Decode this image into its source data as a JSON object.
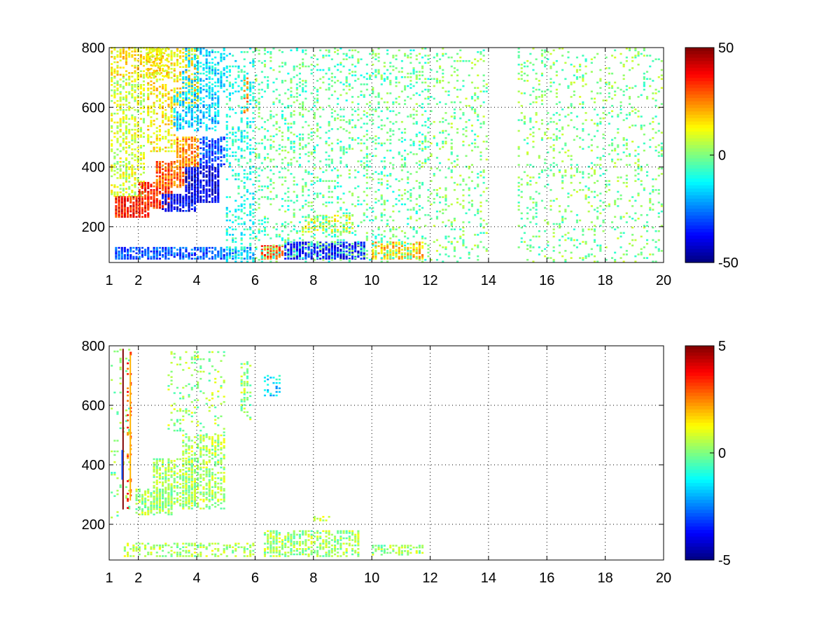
{
  "chart_data": [
    {
      "type": "heatmap",
      "title": "",
      "xlabel": "",
      "ylabel": "",
      "xlim": [
        1,
        20
      ],
      "ylim": [
        80,
        800
      ],
      "x_ticks": [
        1,
        2,
        4,
        6,
        8,
        10,
        12,
        14,
        16,
        18,
        20
      ],
      "y_ticks": [
        200,
        400,
        600,
        800
      ],
      "grid": true,
      "colormap": "jet",
      "colorbar": {
        "min": -50,
        "max": 50,
        "ticks": [
          50,
          0,
          -50
        ]
      },
      "background_color": "#ffffff",
      "regions": [
        {
          "x": [
            1.05,
            3.0
          ],
          "y": [
            700,
            800
          ],
          "value": 14,
          "density": 0.5
        },
        {
          "x": [
            1.05,
            2.3
          ],
          "y": [
            300,
            700
          ],
          "value": 8,
          "density": 0.45
        },
        {
          "x": [
            2.3,
            3.3
          ],
          "y": [
            450,
            800
          ],
          "value": 14,
          "density": 0.5
        },
        {
          "x": [
            3.3,
            4.1
          ],
          "y": [
            600,
            800
          ],
          "value": 14,
          "density": 0.55
        },
        {
          "x": [
            3.2,
            4.8
          ],
          "y": [
            520,
            650
          ],
          "value": -18,
          "density": 0.55
        },
        {
          "x": [
            3.5,
            5.0
          ],
          "y": [
            650,
            800
          ],
          "value": -16,
          "density": 0.45
        },
        {
          "x": [
            1.2,
            2.4
          ],
          "y": [
            230,
            300
          ],
          "value": 36,
          "density": 0.8
        },
        {
          "x": [
            2.0,
            3.2
          ],
          "y": [
            260,
            350
          ],
          "value": 34,
          "density": 0.8
        },
        {
          "x": [
            2.6,
            3.8
          ],
          "y": [
            330,
            420
          ],
          "value": 28,
          "density": 0.75
        },
        {
          "x": [
            3.3,
            4.1
          ],
          "y": [
            400,
            500
          ],
          "value": 24,
          "density": 0.7
        },
        {
          "x": [
            2.8,
            4.0
          ],
          "y": [
            250,
            310
          ],
          "value": -38,
          "density": 0.8
        },
        {
          "x": [
            3.6,
            4.8
          ],
          "y": [
            280,
            400
          ],
          "value": -40,
          "density": 0.85
        },
        {
          "x": [
            4.1,
            5.0
          ],
          "y": [
            400,
            500
          ],
          "value": -30,
          "density": 0.7
        },
        {
          "x": [
            5.6,
            5.8
          ],
          "y": [
            580,
            700
          ],
          "value": 26,
          "density": 0.6
        },
        {
          "x": [
            1.2,
            5.0
          ],
          "y": [
            90,
            130
          ],
          "value": -30,
          "density": 0.75
        },
        {
          "x": [
            5.0,
            6.0
          ],
          "y": [
            90,
            130
          ],
          "value": -22,
          "density": 0.65
        },
        {
          "x": [
            6.2,
            7.0
          ],
          "y": [
            90,
            140
          ],
          "value": 30,
          "density": 0.75
        },
        {
          "x": [
            7.0,
            9.8
          ],
          "y": [
            90,
            150
          ],
          "value": -36,
          "density": 0.8
        },
        {
          "x": [
            7.6,
            9.4
          ],
          "y": [
            180,
            240
          ],
          "value": 10,
          "density": 0.55
        },
        {
          "x": [
            10.0,
            11.8
          ],
          "y": [
            90,
            150
          ],
          "value": 18,
          "density": 0.65
        },
        {
          "x": [
            5.0,
            6.0
          ],
          "y": [
            80,
            800
          ],
          "value": -10,
          "density": 0.3
        },
        {
          "x": [
            6.0,
            12.0
          ],
          "y": [
            80,
            800
          ],
          "value": -3,
          "density": 0.2
        },
        {
          "x": [
            12.0,
            14.0
          ],
          "y": [
            80,
            800
          ],
          "value": 0,
          "density": 0.14
        },
        {
          "x": [
            15.0,
            20.0
          ],
          "y": [
            80,
            800
          ],
          "value": 0,
          "density": 0.14
        }
      ]
    },
    {
      "type": "heatmap",
      "title": "",
      "xlabel": "",
      "ylabel": "",
      "xlim": [
        1,
        20
      ],
      "ylim": [
        80,
        800
      ],
      "x_ticks": [
        1,
        2,
        4,
        6,
        8,
        10,
        12,
        14,
        16,
        18,
        20
      ],
      "y_ticks": [
        200,
        400,
        600,
        800
      ],
      "grid": true,
      "colormap": "jet",
      "colorbar": {
        "min": -5,
        "max": 5,
        "ticks": [
          5,
          0,
          -5
        ]
      },
      "background_color": "#ffffff",
      "regions": [
        {
          "x": [
            1.05,
            1.75
          ],
          "y": [
            220,
            790
          ],
          "value": 0,
          "density": 0.1
        },
        {
          "x": [
            1.9,
            3.2
          ],
          "y": [
            230,
            320
          ],
          "value": 0.3,
          "density": 0.7
        },
        {
          "x": [
            2.5,
            4.0
          ],
          "y": [
            260,
            420
          ],
          "value": 0.3,
          "density": 0.6
        },
        {
          "x": [
            3.5,
            5.0
          ],
          "y": [
            250,
            500
          ],
          "value": 0.4,
          "density": 0.55
        },
        {
          "x": [
            3.0,
            5.0
          ],
          "y": [
            500,
            780
          ],
          "value": 0.3,
          "density": 0.18
        },
        {
          "x": [
            5.5,
            5.9
          ],
          "y": [
            550,
            750
          ],
          "value": 0.2,
          "density": 0.35
        },
        {
          "x": [
            6.3,
            6.9
          ],
          "y": [
            630,
            700
          ],
          "value": -1.5,
          "density": 0.45
        },
        {
          "x": [
            1.5,
            6.0
          ],
          "y": [
            90,
            140
          ],
          "value": 0.4,
          "density": 0.45
        },
        {
          "x": [
            6.3,
            9.6
          ],
          "y": [
            90,
            180
          ],
          "value": 0.3,
          "density": 0.6
        },
        {
          "x": [
            8.0,
            8.6
          ],
          "y": [
            210,
            230
          ],
          "value": 0.5,
          "density": 0.6
        },
        {
          "x": [
            10.0,
            11.8
          ],
          "y": [
            95,
            130
          ],
          "value": 0.3,
          "density": 0.5
        },
        {
          "x": [
            1.6,
            1.8
          ],
          "y": [
            240,
            790
          ],
          "value": 3,
          "density": 0.2
        }
      ],
      "lines": [
        {
          "x": 1.45,
          "y": [
            250,
            790
          ],
          "value": 5
        },
        {
          "x": 1.42,
          "y": [
            350,
            450
          ],
          "value": -3
        },
        {
          "x": 1.7,
          "y": [
            280,
            770
          ],
          "value": 2
        }
      ]
    }
  ]
}
